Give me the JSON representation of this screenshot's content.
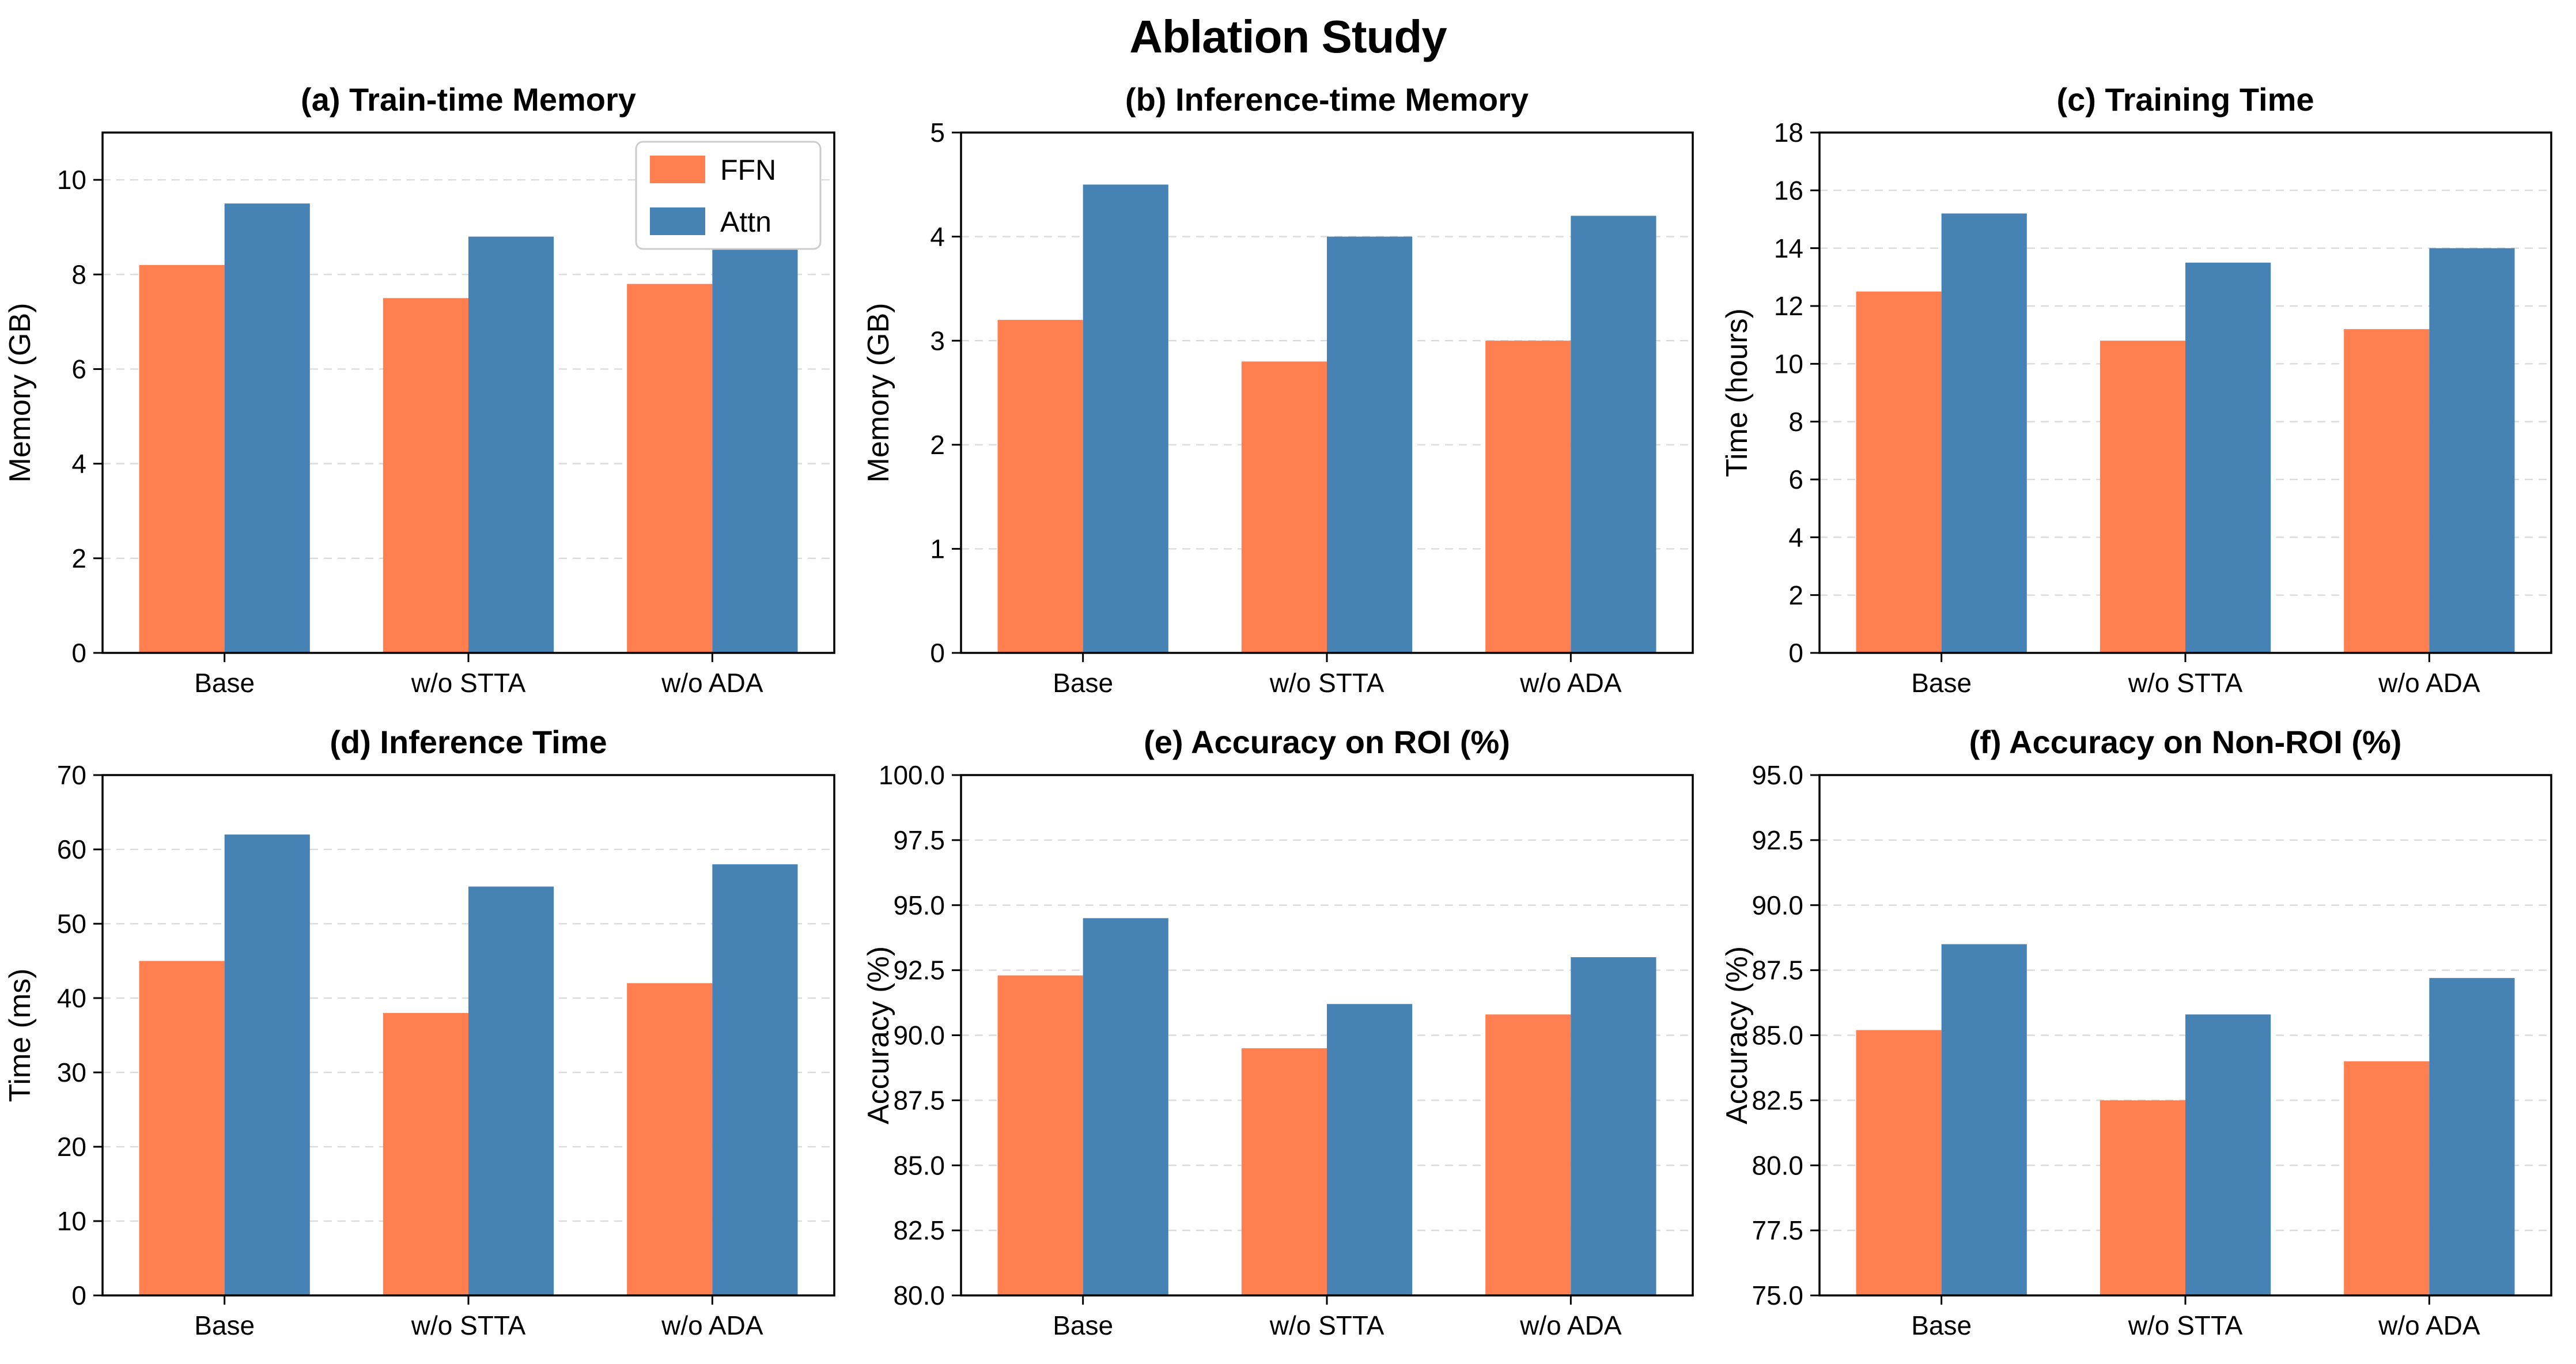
{
  "page_title": "Ablation Study",
  "colors": {
    "ffn": "#FF7F50",
    "attn": "#4682B4",
    "grid": "#DBDBDB",
    "spine": "#000000",
    "text": "#000000",
    "legend_border": "#CCCCCC",
    "legend_bg": "#FFFFFF",
    "background": "#FFFFFF"
  },
  "legend": {
    "position": "upper-right",
    "entries": [
      {
        "label": "FFN",
        "color": "#FF7F50"
      },
      {
        "label": "Attn",
        "color": "#4682B4"
      }
    ]
  },
  "chart_data": [
    {
      "id": "a",
      "type": "bar",
      "title": "(a) Train-time Memory",
      "ylabel": "Memory (GB)",
      "xlabel": "",
      "categories": [
        "Base",
        "w/o STTA",
        "w/o ADA"
      ],
      "series": [
        {
          "name": "FFN",
          "color": "#FF7F50",
          "values": [
            8.2,
            7.5,
            7.8
          ]
        },
        {
          "name": "Attn",
          "color": "#4682B4",
          "values": [
            9.5,
            8.8,
            9.0
          ]
        }
      ],
      "ylim": [
        0,
        11
      ],
      "ytick_values": [
        0,
        2,
        4,
        6,
        8,
        10
      ],
      "ytick_labels": [
        "0",
        "2",
        "4",
        "6",
        "8",
        "10"
      ],
      "grid": true,
      "legend": true
    },
    {
      "id": "b",
      "type": "bar",
      "title": "(b) Inference-time Memory",
      "ylabel": "Memory (GB)",
      "xlabel": "",
      "categories": [
        "Base",
        "w/o STTA",
        "w/o ADA"
      ],
      "series": [
        {
          "name": "FFN",
          "color": "#FF7F50",
          "values": [
            3.2,
            2.8,
            3.0
          ]
        },
        {
          "name": "Attn",
          "color": "#4682B4",
          "values": [
            4.5,
            4.0,
            4.2
          ]
        }
      ],
      "ylim": [
        0,
        5
      ],
      "ytick_values": [
        0,
        1,
        2,
        3,
        4,
        5
      ],
      "ytick_labels": [
        "0",
        "1",
        "2",
        "3",
        "4",
        "5"
      ],
      "grid": true,
      "legend": false
    },
    {
      "id": "c",
      "type": "bar",
      "title": "(c) Training Time",
      "ylabel": "Time (hours)",
      "xlabel": "",
      "categories": [
        "Base",
        "w/o STTA",
        "w/o ADA"
      ],
      "series": [
        {
          "name": "FFN",
          "color": "#FF7F50",
          "values": [
            12.5,
            10.8,
            11.2
          ]
        },
        {
          "name": "Attn",
          "color": "#4682B4",
          "values": [
            15.2,
            13.5,
            14.0
          ]
        }
      ],
      "ylim": [
        0,
        18
      ],
      "ytick_values": [
        0,
        2,
        4,
        6,
        8,
        10,
        12,
        14,
        16,
        18
      ],
      "ytick_labels": [
        "0",
        "2",
        "4",
        "6",
        "8",
        "10",
        "12",
        "14",
        "16",
        "18"
      ],
      "grid": true,
      "legend": false
    },
    {
      "id": "d",
      "type": "bar",
      "title": "(d) Inference Time",
      "ylabel": "Time (ms)",
      "xlabel": "",
      "categories": [
        "Base",
        "w/o STTA",
        "w/o ADA"
      ],
      "series": [
        {
          "name": "FFN",
          "color": "#FF7F50",
          "values": [
            45,
            38,
            42
          ]
        },
        {
          "name": "Attn",
          "color": "#4682B4",
          "values": [
            62,
            55,
            58
          ]
        }
      ],
      "ylim": [
        0,
        70
      ],
      "ytick_values": [
        0,
        10,
        20,
        30,
        40,
        50,
        60,
        70
      ],
      "ytick_labels": [
        "0",
        "10",
        "20",
        "30",
        "40",
        "50",
        "60",
        "70"
      ],
      "grid": true,
      "legend": false
    },
    {
      "id": "e",
      "type": "bar",
      "title": "(e) Accuracy on ROI (%)",
      "ylabel": "Accuracy (%)",
      "xlabel": "",
      "categories": [
        "Base",
        "w/o STTA",
        "w/o ADA"
      ],
      "series": [
        {
          "name": "FFN",
          "color": "#FF7F50",
          "values": [
            92.3,
            89.5,
            90.8
          ]
        },
        {
          "name": "Attn",
          "color": "#4682B4",
          "values": [
            94.5,
            91.2,
            93.0
          ]
        }
      ],
      "ylim": [
        80,
        100
      ],
      "ytick_values": [
        80,
        82.5,
        85,
        87.5,
        90,
        92.5,
        95,
        97.5,
        100
      ],
      "ytick_labels": [
        "80.0",
        "82.5",
        "85.0",
        "87.5",
        "90.0",
        "92.5",
        "95.0",
        "97.5",
        "100.0"
      ],
      "grid": true,
      "legend": false
    },
    {
      "id": "f",
      "type": "bar",
      "title": "(f) Accuracy on Non-ROI (%)",
      "ylabel": "Accuracy (%)",
      "xlabel": "",
      "categories": [
        "Base",
        "w/o STTA",
        "w/o ADA"
      ],
      "series": [
        {
          "name": "FFN",
          "color": "#FF7F50",
          "values": [
            85.2,
            82.5,
            84.0
          ]
        },
        {
          "name": "Attn",
          "color": "#4682B4",
          "values": [
            88.5,
            85.8,
            87.2
          ]
        }
      ],
      "ylim": [
        75,
        95
      ],
      "ytick_values": [
        75,
        77.5,
        80,
        82.5,
        85,
        87.5,
        90,
        92.5,
        95
      ],
      "ytick_labels": [
        "75.0",
        "77.5",
        "80.0",
        "82.5",
        "85.0",
        "87.5",
        "90.0",
        "92.5",
        "95.0"
      ],
      "grid": true,
      "legend": false
    }
  ]
}
